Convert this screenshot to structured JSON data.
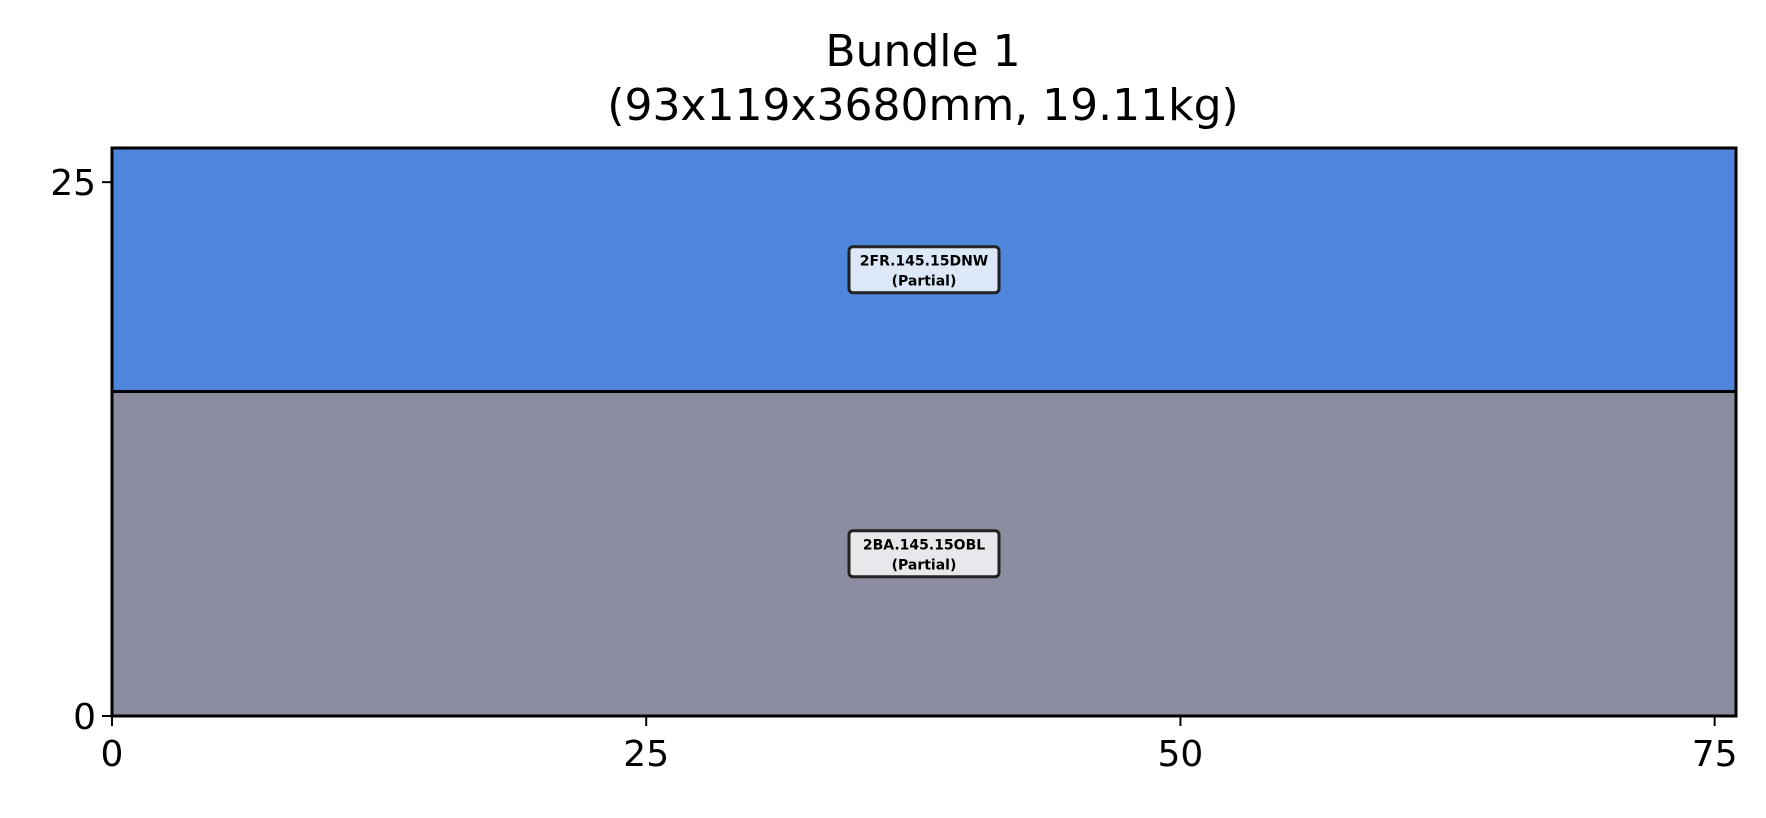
{
  "chart_data": {
    "type": "bar",
    "title": "Bundle 1",
    "subtitle": "(93x119x3680mm, 19.11kg)",
    "xlabel": "",
    "ylabel": "",
    "xlim": [
      0,
      76
    ],
    "ylim": [
      0,
      26.6
    ],
    "x_ticks": [
      0,
      25,
      50,
      75
    ],
    "y_ticks": [
      0,
      25
    ],
    "grid": false,
    "segments": [
      {
        "name": "2BA.145.15OBL",
        "status": "(Partial)",
        "y_start": 0,
        "y_end": 15.2,
        "color": "#8c8ca0"
      },
      {
        "name": "2FR.145.15DNW",
        "status": "(Partial)",
        "y_start": 15.2,
        "y_end": 26.6,
        "color": "#4f86db"
      }
    ]
  },
  "colors": {
    "axis": "#000000",
    "label_box_border": "#222222"
  }
}
